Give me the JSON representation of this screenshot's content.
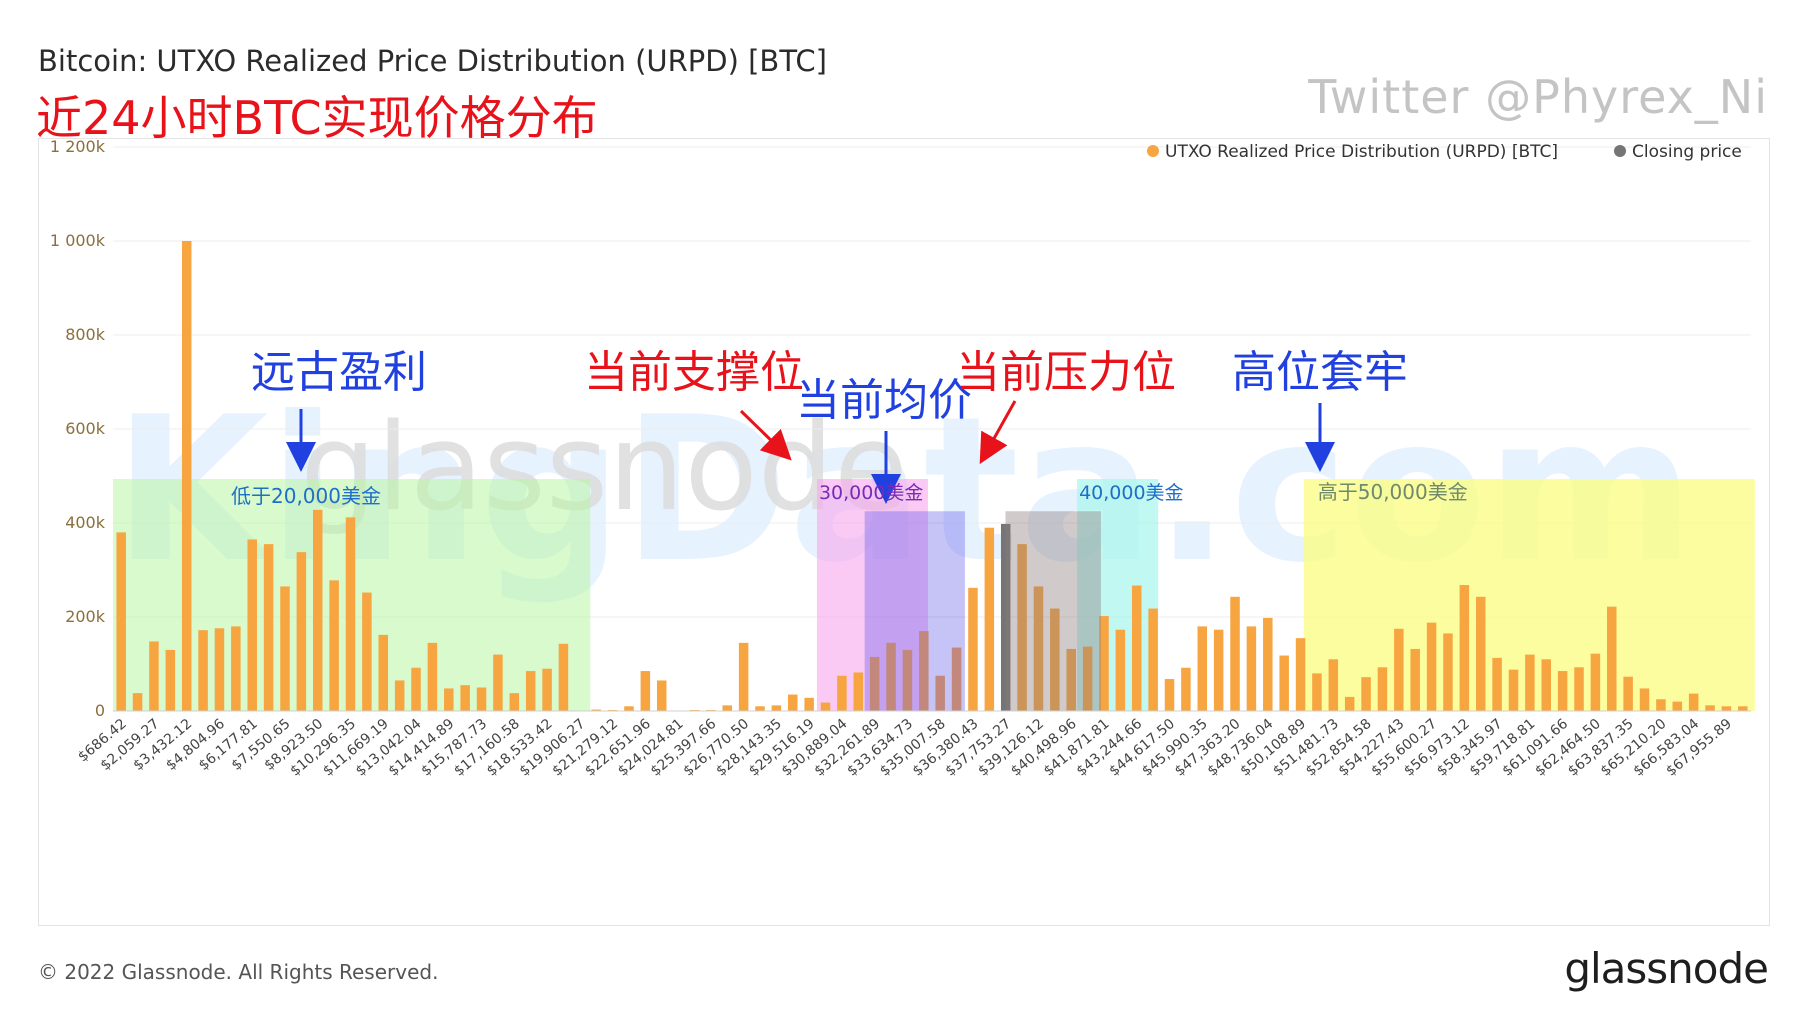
{
  "header": {
    "title": "Bitcoin: UTXO Realized Price Distribution (URPD) [BTC]",
    "subtitle_cn": "近24小时BTC实现价格分布",
    "twitter": "Twitter @Phyrex_Ni"
  },
  "footer": {
    "copyright": "© 2022 Glassnode. All Rights Reserved.",
    "logo": "glassnode"
  },
  "watermarks": {
    "glassnode": "glassnode",
    "kingdata": "KingData.com"
  },
  "colors": {
    "bar": "#f7a541",
    "closing": "#757575",
    "grid": "#ececec",
    "axis_text": "#8b6f3c",
    "tick_text": "#444444",
    "annotation_blue": "#2040e0",
    "annotation_red": "#e8121b",
    "box_blue_text": "#1d6fc8"
  },
  "legend": [
    {
      "label": "UTXO Realized Price Distribution (URPD) [BTC]",
      "color": "#f7a541"
    },
    {
      "label": "Closing price",
      "color": "#757575"
    }
  ],
  "annotations": {
    "ancient_profit": "远古盈利",
    "current_support": "当前支撑位",
    "current_avg": "当前均价",
    "current_resistance": "当前压力位",
    "high_trapped": "高位套牢",
    "below_20k": "低于20,000美金",
    "k30": "30,000美金",
    "k40": "40,000美金",
    "above_50k": "高于50,000美金"
  },
  "chart_data": {
    "type": "bar",
    "title": "Bitcoin: UTXO Realized Price Distribution (URPD) [BTC]",
    "ylim": [
      0,
      1200000
    ],
    "y_ticks": [
      0,
      200000,
      400000,
      600000,
      800000,
      1000000,
      1200000
    ],
    "y_tick_labels": [
      "0",
      "200k",
      "400k",
      "600k",
      "800k",
      "1 000k",
      "1 200k"
    ],
    "x_tick_labels": [
      "$686.42",
      "$2,059.27",
      "$3,432.12",
      "$4,804.96",
      "$6,177.81",
      "$7,550.65",
      "$8,923.50",
      "$10,296.35",
      "$11,669.19",
      "$13,042.04",
      "$14,414.89",
      "$15,787.73",
      "$17,160.58",
      "$18,533.42",
      "$19,906.27",
      "$21,279.12",
      "$22,651.96",
      "$24,024.81",
      "$25,397.66",
      "$26,770.50",
      "$28,143.35",
      "$29,516.19",
      "$30,889.04",
      "$32,261.89",
      "$33,634.73",
      "$35,007.58",
      "$36,380.43",
      "$37,753.27",
      "$39,126.12",
      "$40,498.96",
      "$41,871.81",
      "$43,244.66",
      "$44,617.50",
      "$45,990.35",
      "$47,363.20",
      "$48,736.04",
      "$50,108.89",
      "$51,481.73",
      "$52,854.58",
      "$54,227.43",
      "$55,600.27",
      "$56,973.12",
      "$58,345.97",
      "$59,718.81",
      "$61,091.66",
      "$62,464.50",
      "$63,837.35",
      "$65,210.20",
      "$66,583.04",
      "$67,955.89"
    ],
    "bin_start": 0,
    "bin_width": 686.42,
    "values": [
      380000,
      38000,
      148000,
      130000,
      1000000,
      172000,
      176000,
      180000,
      365000,
      355000,
      265000,
      338000,
      428000,
      278000,
      412000,
      252000,
      162000,
      65000,
      92000,
      145000,
      48000,
      55000,
      50000,
      120000,
      38000,
      85000,
      90000,
      143000,
      0,
      3000,
      2000,
      10000,
      85000,
      65000,
      1000,
      2000,
      2000,
      12000,
      145000,
      10000,
      12000,
      35000,
      28000,
      18000,
      75000,
      82000,
      115000,
      145000,
      130000,
      170000,
      75000,
      135000,
      262000,
      390000,
      398000,
      355000,
      265000,
      218000,
      132000,
      137000,
      202000,
      173000,
      267000,
      218000,
      68000,
      92000,
      180000,
      173000,
      243000,
      180000,
      198000,
      118000,
      155000,
      80000,
      110000,
      30000,
      72000,
      93000,
      175000,
      132000,
      188000,
      165000,
      268000,
      243000,
      113000,
      88000,
      120000,
      110000,
      85000,
      93000,
      122000,
      222000,
      73000,
      48000,
      25000,
      20000,
      37000,
      12000,
      10000,
      10000
    ],
    "closing_price_index": 54,
    "legend_position": "top-right",
    "grid": true
  }
}
